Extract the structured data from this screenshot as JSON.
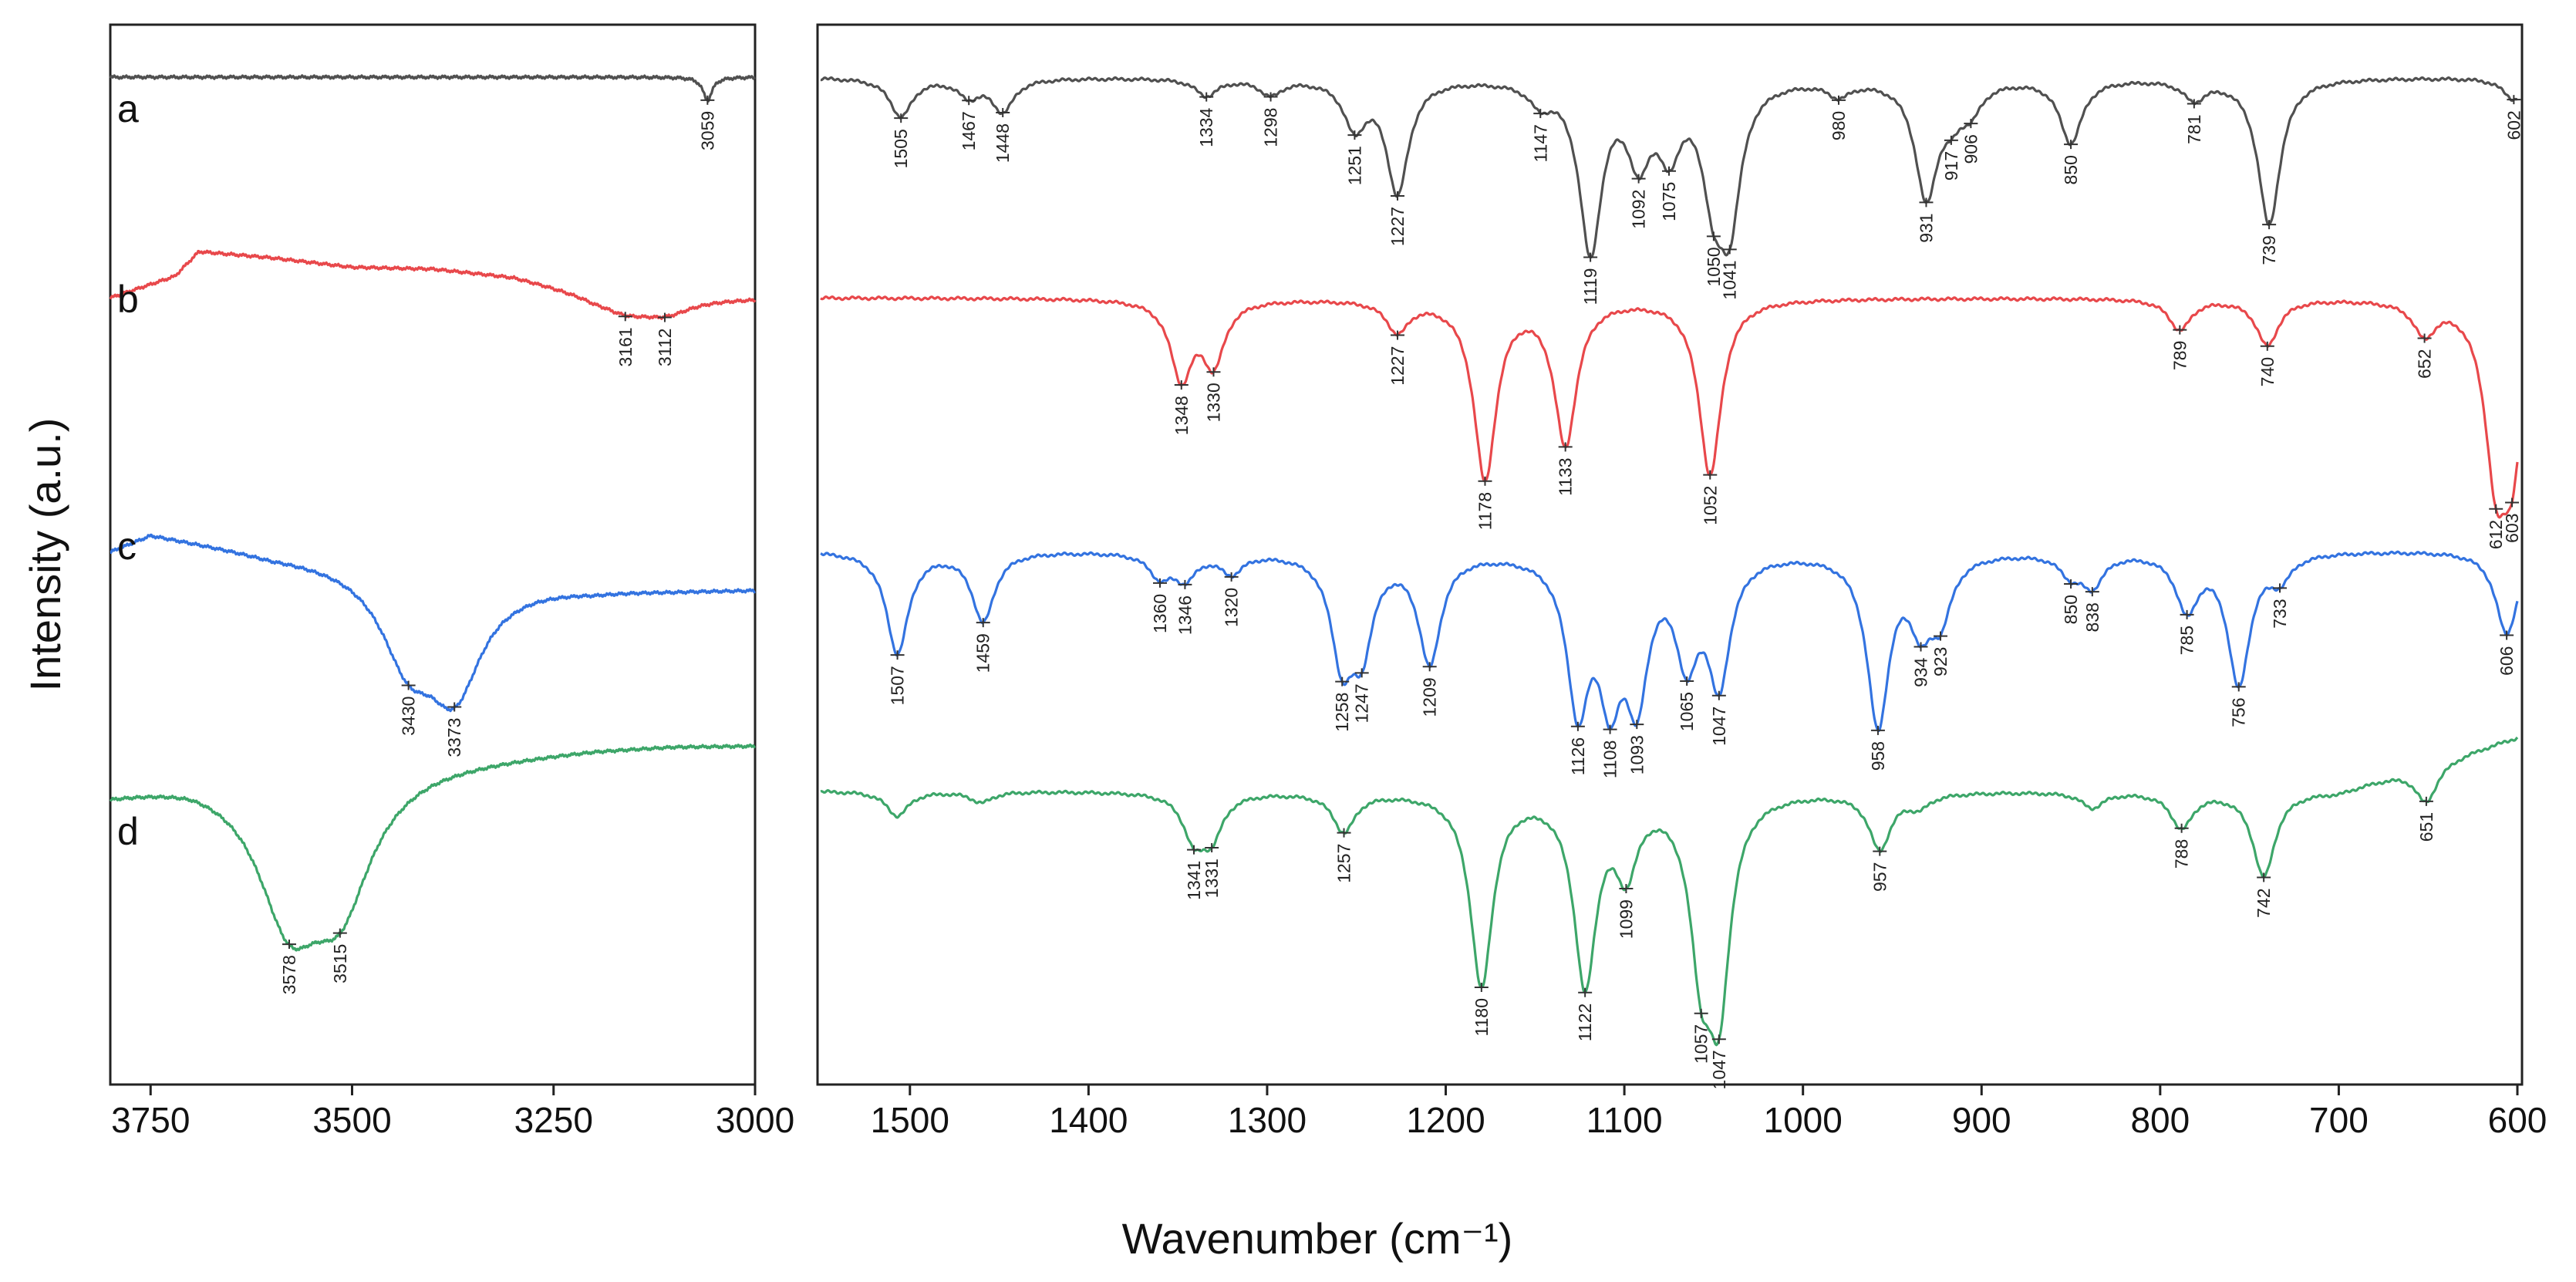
{
  "chart_data": [
    {
      "type": "line",
      "title": "",
      "xlabel": "Wavenumber (cm⁻¹)",
      "ylabel": "Intensity (a.u.)",
      "xlim": [
        3800,
        3000
      ],
      "x_ticks": [
        "3750",
        "3500",
        "3250",
        "3000"
      ],
      "series": [
        {
          "name": "a",
          "color": "#505050",
          "baseline": [
            [
              3800,
              0
            ],
            [
              3700,
              0
            ],
            [
              3600,
              0
            ],
            [
              3500,
              0
            ],
            [
              3400,
              0
            ],
            [
              3300,
              0
            ],
            [
              3200,
              0
            ],
            [
              3100,
              0
            ],
            [
              3000,
              0
            ]
          ],
          "peaks": [
            {
              "x": 3059,
              "depth": 30,
              "label": "3059"
            }
          ]
        },
        {
          "name": "b",
          "color": "#e8484b",
          "baseline": [
            [
              3800,
              0
            ],
            [
              3720,
              -28
            ],
            [
              3690,
              -60
            ],
            [
              3600,
              -52
            ],
            [
              3500,
              -40
            ],
            [
              3400,
              -38
            ],
            [
              3300,
              -28
            ],
            [
              3200,
              -4
            ],
            [
              3100,
              0
            ],
            [
              3000,
              0
            ]
          ],
          "peaks": [
            {
              "x": 3161,
              "depth": 18,
              "label": "3161"
            },
            {
              "x": 3112,
              "depth": 18,
              "label": "3112"
            }
          ]
        },
        {
          "name": "c",
          "color": "#3373e0",
          "baseline": [
            [
              3800,
              0
            ],
            [
              3750,
              -22
            ],
            [
              3600,
              4
            ],
            [
              3500,
              12
            ],
            [
              3400,
              20
            ],
            [
              3300,
              38
            ],
            [
              3200,
              48
            ],
            [
              3100,
              50
            ],
            [
              3000,
              50
            ]
          ],
          "peaks": [
            {
              "x": 3430,
              "depth": 108,
              "label": "3430"
            },
            {
              "x": 3373,
              "depth": 142,
              "label": "3373"
            }
          ]
        },
        {
          "name": "d",
          "color": "#3da669",
          "baseline": [
            [
              3800,
              0
            ],
            [
              3700,
              -20
            ],
            [
              3500,
              -28
            ],
            [
              3400,
              -40
            ],
            [
              3300,
              -48
            ],
            [
              3200,
              -56
            ],
            [
              3100,
              -60
            ],
            [
              3000,
              -60
            ]
          ],
          "peaks": [
            {
              "x": 3578,
              "depth": 170,
              "label": "3578"
            },
            {
              "x": 3515,
              "depth": 150,
              "label": "3515"
            }
          ]
        }
      ]
    },
    {
      "type": "line",
      "title": "",
      "xlabel": "Wavenumber (cm⁻¹)",
      "ylabel": "Intensity (a.u.)",
      "xlim": [
        1550,
        600
      ],
      "x_ticks": [
        "1500",
        "1400",
        "1300",
        "1200",
        "1100",
        "1000",
        "900",
        "800",
        "700",
        "600"
      ],
      "series": [
        {
          "name": "a",
          "color": "#505050",
          "baseline": [
            [
              1550,
              0
            ],
            [
              1400,
              0
            ],
            [
              1300,
              0
            ],
            [
              1200,
              0
            ],
            [
              1100,
              0
            ],
            [
              1000,
              0
            ],
            [
              900,
              0
            ],
            [
              800,
              0
            ],
            [
              700,
              0
            ],
            [
              600,
              0
            ]
          ],
          "peaks": [
            {
              "x": 1505,
              "depth": 50,
              "label": "1505"
            },
            {
              "x": 1467,
              "depth": 22,
              "label": "1467"
            },
            {
              "x": 1448,
              "depth": 42,
              "label": "1448"
            },
            {
              "x": 1334,
              "depth": 22,
              "label": "1334"
            },
            {
              "x": 1298,
              "depth": 20,
              "label": "1298"
            },
            {
              "x": 1251,
              "depth": 60,
              "label": "1251"
            },
            {
              "x": 1227,
              "depth": 146,
              "label": "1227"
            },
            {
              "x": 1147,
              "depth": 25,
              "label": "1147"
            },
            {
              "x": 1119,
              "depth": 220,
              "label": "1119"
            },
            {
              "x": 1092,
              "depth": 94,
              "label": "1092"
            },
            {
              "x": 1075,
              "depth": 82,
              "label": "1075"
            },
            {
              "x": 1050,
              "depth": 126,
              "label": "1050"
            },
            {
              "x": 1041,
              "depth": 162,
              "label": "1041"
            },
            {
              "x": 980,
              "depth": 18,
              "label": "980"
            },
            {
              "x": 931,
              "depth": 150,
              "label": "931"
            },
            {
              "x": 917,
              "depth": 35,
              "label": "917"
            },
            {
              "x": 906,
              "depth": 32,
              "label": "906"
            },
            {
              "x": 850,
              "depth": 82,
              "label": "850"
            },
            {
              "x": 781,
              "depth": 25,
              "label": "781"
            },
            {
              "x": 739,
              "depth": 190,
              "label": "739"
            },
            {
              "x": 602,
              "depth": 28,
              "label": "602"
            }
          ]
        },
        {
          "name": "b",
          "color": "#e8484b",
          "baseline": [
            [
              1550,
              0
            ],
            [
              1400,
              0
            ],
            [
              1300,
              0
            ],
            [
              1200,
              0
            ],
            [
              1100,
              0
            ],
            [
              1000,
              0
            ],
            [
              900,
              0
            ],
            [
              800,
              0
            ],
            [
              700,
              0
            ],
            [
              600,
              0
            ]
          ],
          "peaks": [
            {
              "x": 1348,
              "depth": 100,
              "label": "1348"
            },
            {
              "x": 1330,
              "depth": 80,
              "label": "1330"
            },
            {
              "x": 1227,
              "depth": 40,
              "label": "1227"
            },
            {
              "x": 1178,
              "depth": 232,
              "label": "1178"
            },
            {
              "x": 1133,
              "depth": 186,
              "label": "1133"
            },
            {
              "x": 1052,
              "depth": 228,
              "label": "1052"
            },
            {
              "x": 789,
              "depth": 40,
              "label": "789"
            },
            {
              "x": 740,
              "depth": 60,
              "label": "740"
            },
            {
              "x": 652,
              "depth": 42,
              "label": "652"
            },
            {
              "x": 612,
              "depth": 200,
              "label": "612"
            },
            {
              "x": 603,
              "depth": 180,
              "label": "603"
            }
          ]
        },
        {
          "name": "c",
          "color": "#3373e0",
          "baseline": [
            [
              1550,
              0
            ],
            [
              1400,
              0
            ],
            [
              1300,
              0
            ],
            [
              1200,
              0
            ],
            [
              1100,
              0
            ],
            [
              1000,
              0
            ],
            [
              900,
              0
            ],
            [
              800,
              0
            ],
            [
              700,
              0
            ],
            [
              600,
              0
            ]
          ],
          "peaks": [
            {
              "x": 1507,
              "depth": 132,
              "label": "1507"
            },
            {
              "x": 1459,
              "depth": 90,
              "label": "1459"
            },
            {
              "x": 1360,
              "depth": 30,
              "label": "1360"
            },
            {
              "x": 1346,
              "depth": 32,
              "label": "1346"
            },
            {
              "x": 1320,
              "depth": 25,
              "label": "1320"
            },
            {
              "x": 1258,
              "depth": 130,
              "label": "1258"
            },
            {
              "x": 1247,
              "depth": 110,
              "label": "1247"
            },
            {
              "x": 1209,
              "depth": 140,
              "label": "1209"
            },
            {
              "x": 1126,
              "depth": 190,
              "label": "1126"
            },
            {
              "x": 1108,
              "depth": 162,
              "label": "1108"
            },
            {
              "x": 1093,
              "depth": 170,
              "label": "1093"
            },
            {
              "x": 1065,
              "depth": 125,
              "label": "1065"
            },
            {
              "x": 1047,
              "depth": 160,
              "label": "1047"
            },
            {
              "x": 958,
              "depth": 220,
              "label": "958"
            },
            {
              "x": 934,
              "depth": 80,
              "label": "934"
            },
            {
              "x": 923,
              "depth": 72,
              "label": "923"
            },
            {
              "x": 850,
              "depth": 25,
              "label": "850"
            },
            {
              "x": 838,
              "depth": 40,
              "label": "838"
            },
            {
              "x": 785,
              "depth": 72,
              "label": "785"
            },
            {
              "x": 756,
              "depth": 170,
              "label": "756"
            },
            {
              "x": 733,
              "depth": 30,
              "label": "733"
            },
            {
              "x": 606,
              "depth": 108,
              "label": "606"
            }
          ]
        },
        {
          "name": "d",
          "color": "#3da669",
          "baseline": [
            [
              1550,
              0
            ],
            [
              1400,
              0
            ],
            [
              1300,
              0
            ],
            [
              1200,
              0
            ],
            [
              1100,
              0
            ],
            [
              1000,
              0
            ],
            [
              900,
              0
            ],
            [
              800,
              0
            ],
            [
              700,
              0
            ],
            [
              600,
              -70
            ]
          ],
          "peaks": [
            {
              "x": 1507,
              "depth": 32,
              "label": ""
            },
            {
              "x": 1460,
              "depth": 14,
              "label": ""
            },
            {
              "x": 1341,
              "depth": 56,
              "label": "1341"
            },
            {
              "x": 1331,
              "depth": 52,
              "label": "1331"
            },
            {
              "x": 1257,
              "depth": 50,
              "label": "1257"
            },
            {
              "x": 1180,
              "depth": 250,
              "label": "1180"
            },
            {
              "x": 1122,
              "depth": 244,
              "label": "1122"
            },
            {
              "x": 1099,
              "depth": 90,
              "label": "1099"
            },
            {
              "x": 1057,
              "depth": 190,
              "label": "1057"
            },
            {
              "x": 1047,
              "depth": 250,
              "label": "1047"
            },
            {
              "x": 957,
              "depth": 72,
              "label": "957"
            },
            {
              "x": 935,
              "depth": 16,
              "label": ""
            },
            {
              "x": 838,
              "depth": 20,
              "label": ""
            },
            {
              "x": 788,
              "depth": 46,
              "label": "788"
            },
            {
              "x": 742,
              "depth": 110,
              "label": "742"
            },
            {
              "x": 651,
              "depth": 48,
              "label": "651"
            }
          ]
        }
      ]
    }
  ]
}
